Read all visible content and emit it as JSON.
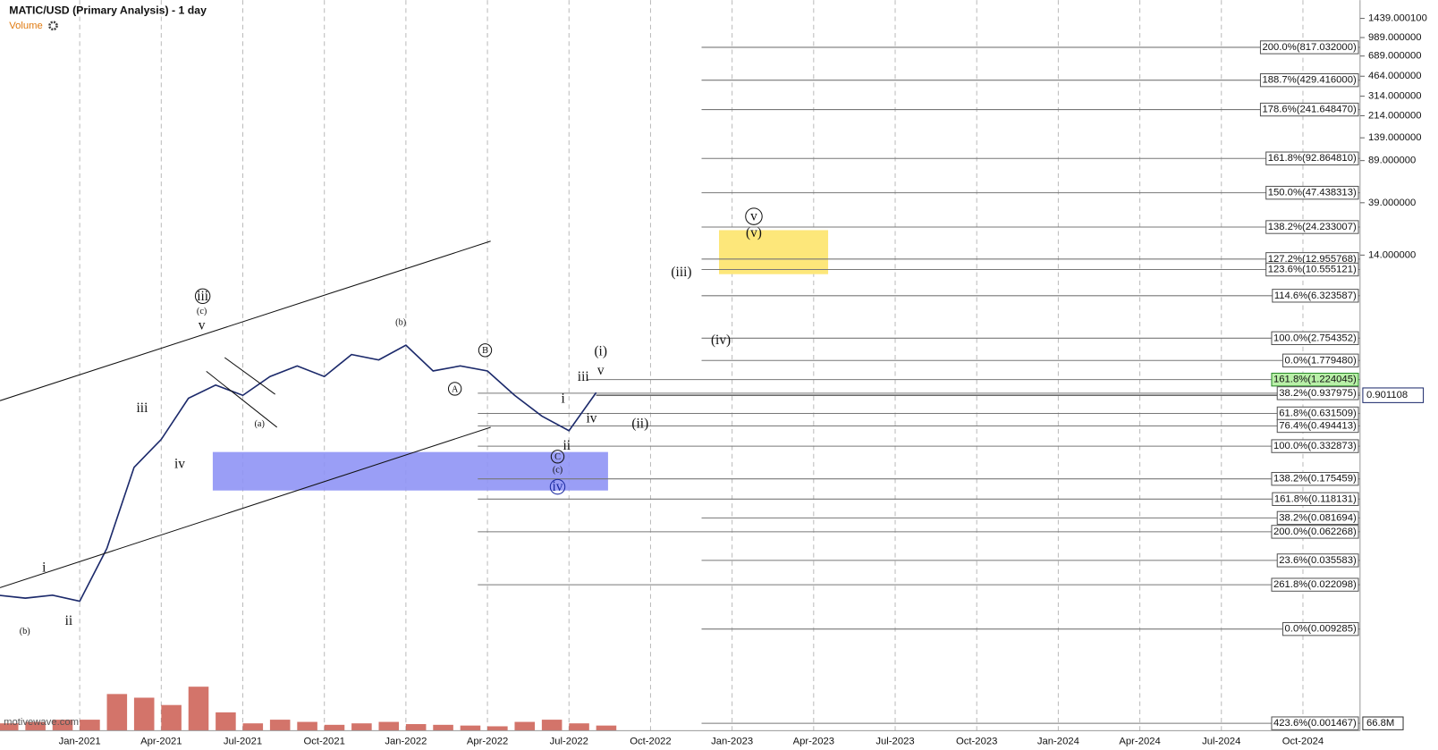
{
  "chart_data": {
    "type": "line",
    "title": "MATIC/USD (Primary Analysis) - 1 day",
    "indicator": "Volume",
    "watermark": "motivewave.com",
    "log_scale": true,
    "color": "#1c2a6b",
    "volume_color": "#c0392b",
    "xlim": [
      "2020-10",
      "2024-12"
    ],
    "ylim": [
      0.00127,
      2060
    ],
    "vlim": [
      0,
      900000000
    ],
    "xticks": [
      {
        "value": "2021-01",
        "label": "Jan-2021"
      },
      {
        "value": "2021-04",
        "label": "Apr-2021"
      },
      {
        "value": "2021-07",
        "label": "Jul-2021"
      },
      {
        "value": "2021-10",
        "label": "Oct-2021"
      },
      {
        "value": "2022-01",
        "label": "Jan-2022"
      },
      {
        "value": "2022-04",
        "label": "Apr-2022"
      },
      {
        "value": "2022-07",
        "label": "Jul-2022"
      },
      {
        "value": "2022-10",
        "label": "Oct-2022"
      },
      {
        "value": "2023-01",
        "label": "Jan-2023"
      },
      {
        "value": "2023-04",
        "label": "Apr-2023"
      },
      {
        "value": "2023-07",
        "label": "Jul-2023"
      },
      {
        "value": "2023-10",
        "label": "Oct-2023"
      },
      {
        "value": "2024-01",
        "label": "Jan-2024"
      },
      {
        "value": "2024-04",
        "label": "Apr-2024"
      },
      {
        "value": "2024-07",
        "label": "Jul-2024"
      },
      {
        "value": "2024-10",
        "label": "Oct-2024"
      }
    ],
    "yticks": [
      {
        "value": 1439.0001,
        "label": "1439.000100"
      },
      {
        "value": 989,
        "label": "989.000000"
      },
      {
        "value": 689,
        "label": "689.000000"
      },
      {
        "value": 464,
        "label": "464.000000"
      },
      {
        "value": 314,
        "label": "314.000000"
      },
      {
        "value": 214,
        "label": "214.000000"
      },
      {
        "value": 139,
        "label": "139.000000"
      },
      {
        "value": 89,
        "label": "89.000000"
      },
      {
        "value": 39,
        "label": "39.000000"
      },
      {
        "value": 14,
        "label": "14.000000"
      }
    ],
    "x": [
      "2020-10",
      "2020-11",
      "2020-12",
      "2021-01",
      "2021-02",
      "2021-03",
      "2021-04",
      "2021-05",
      "2021-06",
      "2021-07",
      "2021-08",
      "2021-09",
      "2021-10",
      "2021-11",
      "2021-12",
      "2022-01",
      "2022-02",
      "2022-03",
      "2022-04",
      "2022-05",
      "2022-06",
      "2022-07",
      "2022-08"
    ],
    "values": [
      0.018,
      0.017,
      0.018,
      0.016,
      0.045,
      0.22,
      0.38,
      0.85,
      1.1,
      0.9,
      1.3,
      1.6,
      1.3,
      2.0,
      1.8,
      2.4,
      1.45,
      1.6,
      1.45,
      0.9,
      0.6,
      0.45,
      0.95
    ],
    "volume": [
      100000000,
      120000000,
      150000000,
      150000000,
      500000000,
      450000000,
      350000000,
      600000000,
      250000000,
      100000000,
      150000000,
      120000000,
      80000000,
      100000000,
      120000000,
      90000000,
      80000000,
      70000000,
      60000000,
      120000000,
      150000000,
      100000000,
      70000000
    ],
    "last_price": 0.901108,
    "last_volume": "66.8M",
    "fib_levels": [
      {
        "label": "200.0%(817.032000)",
        "value": 817.032
      },
      {
        "label": "188.7%(429.416000)",
        "value": 429.416
      },
      {
        "label": "178.6%(241.648470)",
        "value": 241.64847
      },
      {
        "label": "161.8%(92.864810)",
        "value": 92.86481
      },
      {
        "label": "150.0%(47.438313)",
        "value": 47.438313
      },
      {
        "label": "138.2%(24.233007)",
        "value": 24.233007
      },
      {
        "label": "127.2%(12.955768)",
        "value": 12.955768
      },
      {
        "label": "123.6%(10.555121)",
        "value": 10.555121
      },
      {
        "label": "114.6%(6.323587)",
        "value": 6.323587
      },
      {
        "label": "100.0%(2.754352)",
        "value": 2.754352
      },
      {
        "label": "0.0%(1.779480)",
        "value": 1.77948
      },
      {
        "label": "161.8%(1.224045)",
        "value": 1.224045
      },
      {
        "label": "38.2%(0.937975)",
        "value": 0.937975
      },
      {
        "label": "61.8%(0.631509)",
        "value": 0.631509
      },
      {
        "label": "76.4%(0.494413)",
        "value": 0.494413
      },
      {
        "label": "100.0%(0.332873)",
        "value": 0.332873
      },
      {
        "label": "138.2%(0.175459)",
        "value": 0.175459
      },
      {
        "label": "161.8%(0.118131)",
        "value": 0.118131
      },
      {
        "label": "38.2%(0.081694)",
        "value": 0.081694
      },
      {
        "label": "200.0%(0.062268)",
        "value": 0.062268
      },
      {
        "label": "23.6%(0.035583)",
        "value": 0.035583
      },
      {
        "label": "261.8%(0.022098)",
        "value": 0.022098
      },
      {
        "label": "0.0%(0.009285)",
        "value": 0.009285
      },
      {
        "label": "423.6%(0.001467)",
        "value": 0.001467
      }
    ],
    "annotations": [
      "(b)",
      "ii",
      "i",
      "iii",
      "iv",
      "v",
      "(c)",
      "iii",
      "(a)",
      "(b)",
      "A",
      "B",
      "C",
      "(c)",
      "iv",
      "i",
      "ii",
      "iii",
      "iv",
      "v",
      "(i)",
      "(ii)",
      "(iii)",
      "(iv)",
      "v",
      "(v)"
    ]
  }
}
